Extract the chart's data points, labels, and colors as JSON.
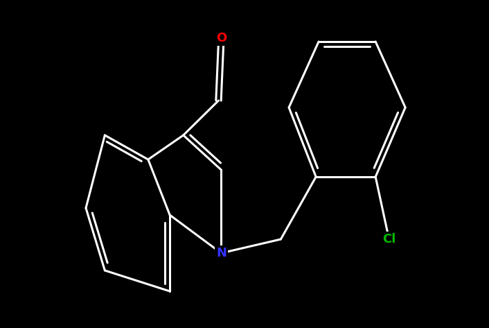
{
  "bg_color": "#000000",
  "bond_color": "#ffffff",
  "N_color": "#3333ff",
  "O_color": "#ff0000",
  "Cl_color": "#00bb00",
  "lw": 2.2,
  "fig_width": 7.06,
  "fig_height": 4.73,
  "dpi": 100,
  "xlim": [
    -1.0,
    9.5
  ],
  "ylim": [
    -1.5,
    7.5
  ],
  "label_fontsize": 13
}
